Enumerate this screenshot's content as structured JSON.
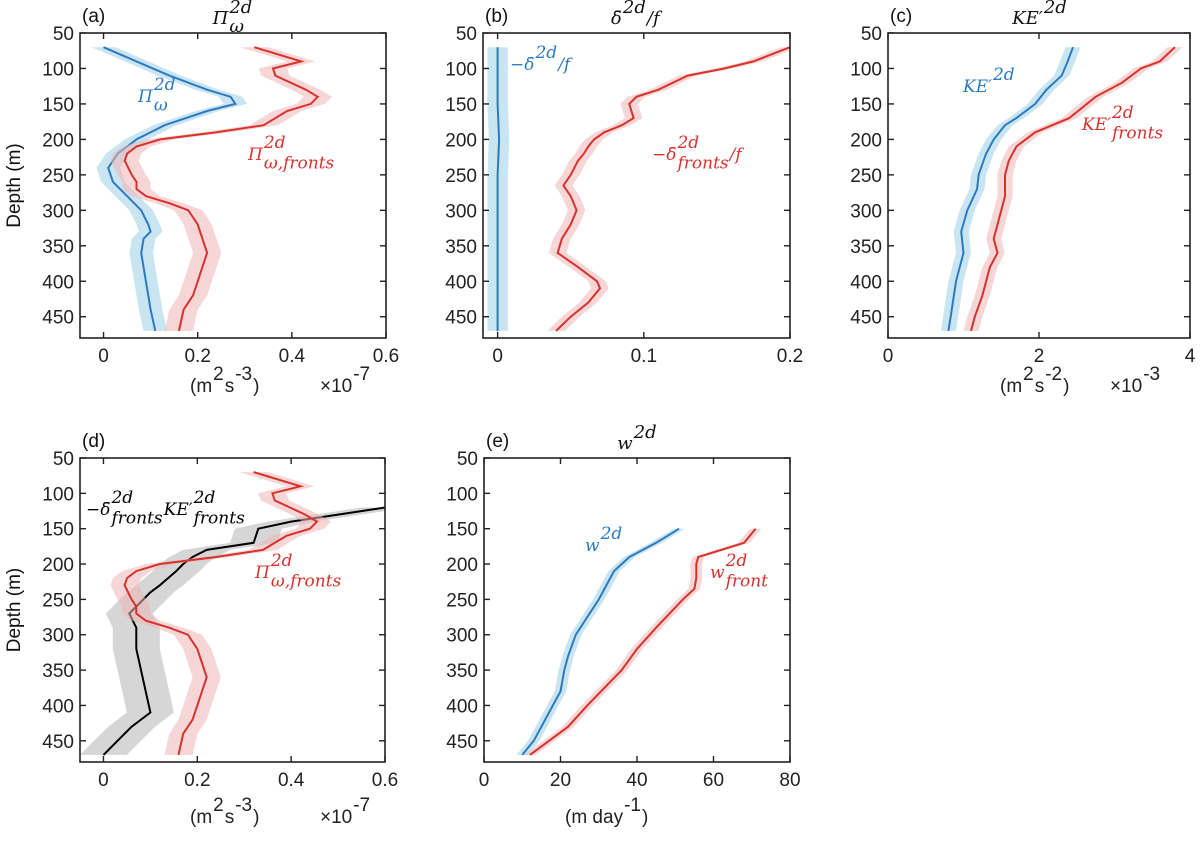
{
  "chart_data": [
    {
      "type": "line",
      "panel_label": "(a)",
      "title": [
        {
          "t": "Π",
          "sup": "2d",
          "sub": "ω"
        }
      ],
      "ylabel": "Depth (m)",
      "xlabel": [
        {
          "t": "(m",
          "sup": "2"
        },
        {
          "t": " s",
          "sup": "-3"
        },
        {
          "t": ")"
        }
      ],
      "x_multiplier": [
        {
          "t": "×10",
          "sup": "-7"
        }
      ],
      "xlim": [
        -0.05,
        0.6
      ],
      "ylim": [
        50,
        480
      ],
      "y_reversed": true,
      "xticks": [
        "0",
        "0.2",
        "0.4",
        "0.6"
      ],
      "yticks": [
        "50",
        "100",
        "150",
        "200",
        "250",
        "300",
        "350",
        "400",
        "450"
      ],
      "grid": false,
      "series": [
        {
          "label": [
            {
              "t": "Π",
              "sup": "2d",
              "sub": "ω"
            }
          ],
          "color": "#2b7bc0",
          "band_color": "#9fcfe8",
          "spread": 0.025,
          "depth": [
            70,
            90,
            110,
            130,
            140,
            150,
            160,
            180,
            200,
            220,
            240,
            260,
            280,
            300,
            320,
            330,
            340,
            360,
            400,
            440,
            470
          ],
          "x": [
            0.0,
            0.07,
            0.14,
            0.22,
            0.27,
            0.28,
            0.22,
            0.13,
            0.07,
            0.03,
            0.01,
            0.02,
            0.05,
            0.08,
            0.095,
            0.1,
            0.085,
            0.08,
            0.09,
            0.1,
            0.11
          ]
        },
        {
          "label": [
            {
              "t": "Π",
              "sup": "2d",
              "sub": "ω,fronts"
            }
          ],
          "color": "#d7322c",
          "band_color": "#efb4b4",
          "spread": 0.03,
          "depth": [
            70,
            90,
            100,
            110,
            130,
            140,
            150,
            160,
            180,
            190,
            200,
            210,
            220,
            230,
            250,
            260,
            270,
            280,
            290,
            300,
            320,
            340,
            360,
            380,
            400,
            420,
            440,
            470
          ],
          "x": [
            0.32,
            0.42,
            0.36,
            0.365,
            0.43,
            0.455,
            0.44,
            0.39,
            0.34,
            0.24,
            0.12,
            0.07,
            0.05,
            0.045,
            0.06,
            0.07,
            0.07,
            0.09,
            0.14,
            0.18,
            0.2,
            0.21,
            0.22,
            0.21,
            0.2,
            0.19,
            0.17,
            0.16
          ]
        }
      ]
    },
    {
      "type": "line",
      "panel_label": "(b)",
      "title": [
        {
          "t": "δ̄",
          "sup": "2d"
        },
        {
          "t": "/f"
        }
      ],
      "xlim": [
        -0.01,
        0.2
      ],
      "ylim": [
        50,
        480
      ],
      "y_reversed": true,
      "xticks": [
        "0",
        "0.1",
        "0.2"
      ],
      "yticks": [
        "50",
        "100",
        "150",
        "200",
        "250",
        "300",
        "350",
        "400",
        "450"
      ],
      "grid": false,
      "series": [
        {
          "label": [
            {
              "t": "−δ̄",
              "sup": "2d"
            },
            {
              "t": "/f"
            }
          ],
          "color": "#2b7bc0",
          "band_color": "#9fcfe8",
          "spread": 0.007,
          "depth": [
            70,
            150,
            200,
            250,
            300,
            350,
            400,
            470
          ],
          "x": [
            0.0,
            0.0,
            0.001,
            0.0,
            0.0,
            0.0,
            0.0,
            0.0
          ]
        },
        {
          "label": [
            {
              "t": "−δ̄",
              "sup": "2d",
              "sub": "fronts"
            },
            {
              "t": "/f"
            }
          ],
          "color": "#d7322c",
          "band_color": "#efb4b4",
          "spread": 0.006,
          "depth": [
            70,
            90,
            100,
            110,
            130,
            140,
            150,
            170,
            180,
            190,
            200,
            210,
            220,
            230,
            250,
            265,
            280,
            300,
            320,
            340,
            360,
            380,
            400,
            410,
            430,
            450,
            470
          ],
          "x": [
            0.2,
            0.175,
            0.155,
            0.13,
            0.11,
            0.095,
            0.09,
            0.093,
            0.085,
            0.073,
            0.066,
            0.062,
            0.059,
            0.055,
            0.05,
            0.045,
            0.05,
            0.054,
            0.05,
            0.044,
            0.041,
            0.055,
            0.068,
            0.07,
            0.062,
            0.05,
            0.04
          ]
        }
      ]
    },
    {
      "type": "line",
      "panel_label": "(c)",
      "title": [
        {
          "t": "KE′",
          "sup": "2d"
        }
      ],
      "xlabel": [
        {
          "t": "(m",
          "sup": "2"
        },
        {
          "t": " s",
          "sup": "-2"
        },
        {
          "t": ")"
        }
      ],
      "x_multiplier": [
        {
          "t": "×10",
          "sup": "-3"
        }
      ],
      "xlim": [
        0,
        4
      ],
      "ylim": [
        50,
        480
      ],
      "y_reversed": true,
      "xticks": [
        "0",
        "2",
        "4"
      ],
      "yticks": [
        "50",
        "100",
        "150",
        "200",
        "250",
        "300",
        "350",
        "400",
        "450"
      ],
      "grid": false,
      "series": [
        {
          "label": [
            {
              "t": "KE′",
              "sup": "2d"
            }
          ],
          "color": "#2b7bc0",
          "band_color": "#9fcfe8",
          "spread": 0.1,
          "depth": [
            70,
            90,
            110,
            130,
            150,
            170,
            180,
            200,
            220,
            250,
            270,
            300,
            330,
            360,
            400,
            450,
            470
          ],
          "x": [
            2.45,
            2.38,
            2.3,
            2.1,
            1.95,
            1.7,
            1.55,
            1.4,
            1.3,
            1.2,
            1.18,
            1.05,
            0.97,
            1.0,
            0.9,
            0.83,
            0.8
          ]
        },
        {
          "label": [
            {
              "t": "KE′",
              "sup": "2d",
              "sub": "fronts"
            }
          ],
          "color": "#d7322c",
          "band_color": "#efb4b4",
          "spread": 0.1,
          "depth": [
            70,
            90,
            100,
            120,
            140,
            170,
            190,
            210,
            230,
            250,
            280,
            300,
            340,
            360,
            380,
            420,
            450,
            470
          ],
          "x": [
            3.8,
            3.6,
            3.35,
            3.1,
            2.75,
            2.4,
            1.95,
            1.7,
            1.6,
            1.55,
            1.55,
            1.5,
            1.4,
            1.45,
            1.35,
            1.25,
            1.15,
            1.1
          ]
        }
      ]
    },
    {
      "type": "line",
      "panel_label": "(d)",
      "ylabel": "Depth (m)",
      "xlabel": [
        {
          "t": "(m",
          "sup": "2"
        },
        {
          "t": " s",
          "sup": "-3"
        },
        {
          "t": ")"
        }
      ],
      "x_multiplier": [
        {
          "t": "×10",
          "sup": "-7"
        }
      ],
      "xlim": [
        -0.05,
        0.6
      ],
      "ylim": [
        50,
        480
      ],
      "y_reversed": true,
      "xticks": [
        "0",
        "0.2",
        "0.4",
        "0.6"
      ],
      "yticks": [
        "50",
        "100",
        "150",
        "200",
        "250",
        "300",
        "350",
        "400",
        "450"
      ],
      "grid": false,
      "series": [
        {
          "label": [
            {
              "t": "−δ̄",
              "sup": "2d",
              "sub": "fronts"
            },
            {
              "t": "KE′",
              "sup": "2d",
              "sub": "fronts"
            }
          ],
          "color": "#000000",
          "band_color": "#b5b5b5",
          "spread": 0.05,
          "depth": [
            120,
            130,
            140,
            150,
            170,
            180,
            190,
            200,
            210,
            230,
            240,
            260,
            270,
            290,
            320,
            350,
            380,
            410,
            430,
            450,
            470
          ],
          "x": [
            0.6,
            0.5,
            0.4,
            0.33,
            0.32,
            0.22,
            0.19,
            0.17,
            0.155,
            0.12,
            0.1,
            0.07,
            0.055,
            0.07,
            0.07,
            0.08,
            0.09,
            0.1,
            0.06,
            0.03,
            0.0
          ]
        },
        {
          "label": [
            {
              "t": "Π",
              "sup": "2d",
              "sub": "ω,fronts"
            }
          ],
          "color": "#d7322c",
          "band_color": "#efb4b4",
          "spread": 0.03,
          "depth": [
            70,
            90,
            100,
            110,
            130,
            140,
            150,
            160,
            180,
            190,
            200,
            210,
            220,
            230,
            250,
            260,
            270,
            280,
            290,
            300,
            320,
            340,
            360,
            380,
            400,
            420,
            440,
            470
          ],
          "x": [
            0.32,
            0.42,
            0.36,
            0.365,
            0.43,
            0.455,
            0.44,
            0.39,
            0.34,
            0.24,
            0.12,
            0.07,
            0.05,
            0.045,
            0.06,
            0.07,
            0.07,
            0.09,
            0.14,
            0.18,
            0.2,
            0.21,
            0.22,
            0.21,
            0.2,
            0.19,
            0.17,
            0.16
          ]
        }
      ]
    },
    {
      "type": "line",
      "panel_label": "(e)",
      "title": [
        {
          "t": "w",
          "sup": "2d"
        }
      ],
      "xlabel": [
        {
          "t": "(m day",
          "sup": "-1"
        },
        {
          "t": ")"
        }
      ],
      "xlim": [
        0,
        80
      ],
      "ylim": [
        50,
        480
      ],
      "y_reversed": true,
      "xticks": [
        "0",
        "20",
        "40",
        "60",
        "80"
      ],
      "yticks": [
        "50",
        "100",
        "150",
        "200",
        "250",
        "300",
        "350",
        "400",
        "450"
      ],
      "grid": false,
      "series": [
        {
          "label": [
            {
              "t": "w",
              "sup": "2d"
            }
          ],
          "color": "#2b7bc0",
          "band_color": "#9fcfe8",
          "spread": 1.5,
          "depth": [
            150,
            160,
            170,
            190,
            210,
            250,
            300,
            330,
            350,
            380,
            400,
            430,
            450,
            470
          ],
          "x": [
            51,
            48,
            45,
            38,
            34,
            30,
            24,
            22,
            21,
            20,
            18,
            15,
            13,
            10
          ]
        },
        {
          "label": [
            {
              "t": "w",
              "sup": "2d",
              "sub": "front"
            }
          ],
          "color": "#d7322c",
          "band_color": "#efb4b4",
          "spread": 1.5,
          "depth": [
            150,
            170,
            190,
            200,
            220,
            235,
            250,
            290,
            320,
            350,
            400,
            430,
            450,
            470
          ],
          "x": [
            71,
            68,
            56,
            55.5,
            55.5,
            55,
            52,
            45,
            40,
            36,
            27,
            22,
            17,
            12
          ]
        }
      ]
    }
  ]
}
